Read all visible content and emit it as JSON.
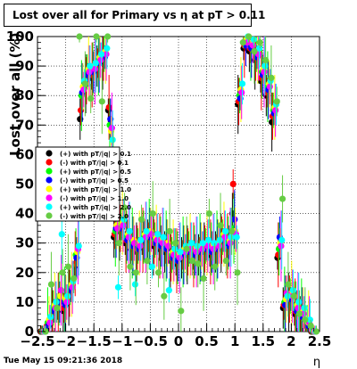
{
  "chart_data": {
    "type": "scatter",
    "title": "Lost over all for Primary vs   η at pT > 0.11",
    "xlabel": "η",
    "ylabel": "Lost over all (%)",
    "xlim": [
      -2.5,
      2.5
    ],
    "ylim": [
      0,
      100
    ],
    "x_ticks": [
      -2.5,
      -2,
      -1.5,
      -1,
      -0.5,
      0,
      0.5,
      1,
      1.5,
      2,
      2.5
    ],
    "x_tick_labels": [
      "−2.5",
      "−2",
      "−1.5",
      "−1",
      "−0.5",
      "0",
      "0.5",
      "1",
      "1.5",
      "2",
      "2.5"
    ],
    "y_ticks": [
      0,
      10,
      20,
      30,
      40,
      50,
      60,
      70,
      80,
      90,
      100
    ],
    "y_tick_labels": [
      "0",
      "10",
      "20",
      "30",
      "40",
      "50",
      "60",
      "70",
      "80",
      "90",
      "100"
    ],
    "grid": true,
    "legend_position": "left",
    "series": [
      {
        "name": "(+) with pT/|q| > 0.1",
        "color": "#000000",
        "marker": "circle",
        "x": [
          -2.4,
          -2.3,
          -2.2,
          -2.1,
          -2.0,
          -1.9,
          -1.8,
          -1.7,
          -1.6,
          -1.5,
          -1.4,
          -1.3,
          -1.2,
          -1.1,
          -1.0,
          -0.9,
          -0.8,
          -0.7,
          -0.6,
          -0.5,
          -0.4,
          -0.3,
          -0.2,
          -0.1,
          0.0,
          0.1,
          0.2,
          0.3,
          0.4,
          0.5,
          0.6,
          0.7,
          0.8,
          0.9,
          1.0,
          1.1,
          1.2,
          1.3,
          1.4,
          1.5,
          1.6,
          1.7,
          1.8,
          1.9,
          2.0,
          2.1,
          2.2,
          2.3,
          2.4
        ],
        "y": [
          0,
          1,
          5,
          8,
          7,
          12,
          22,
          72,
          84,
          86,
          90,
          92,
          75,
          32,
          34,
          30,
          28,
          27,
          30,
          31,
          29,
          28,
          27,
          24,
          23,
          25,
          26,
          25,
          26,
          27,
          26,
          27,
          30,
          28,
          40,
          77,
          96,
          95,
          92,
          85,
          80,
          71,
          25,
          8,
          10,
          6,
          5,
          2,
          0
        ]
      },
      {
        "name": "(-) with pT/|q| > 0.1",
        "color": "#ff0000",
        "marker": "circle",
        "x": [
          -2.4,
          -2.3,
          -2.2,
          -2.1,
          -2.0,
          -1.9,
          -1.8,
          -1.7,
          -1.6,
          -1.5,
          -1.4,
          -1.3,
          -1.2,
          -1.1,
          -1.0,
          -0.9,
          -0.8,
          -0.7,
          -0.6,
          -0.5,
          -0.4,
          -0.3,
          -0.2,
          -0.1,
          0.0,
          0.1,
          0.2,
          0.3,
          0.4,
          0.5,
          0.6,
          0.7,
          0.8,
          0.9,
          1.0,
          1.1,
          1.2,
          1.3,
          1.4,
          1.5,
          1.6,
          1.7,
          1.8,
          1.9,
          2.0,
          2.1,
          2.2,
          2.3,
          2.4
        ],
        "y": [
          0,
          2,
          6,
          9,
          8,
          13,
          23,
          75,
          85,
          87,
          91,
          93,
          76,
          33,
          35,
          31,
          29,
          28,
          31,
          32,
          30,
          29,
          28,
          25,
          24,
          26,
          27,
          26,
          27,
          28,
          27,
          28,
          31,
          29,
          50,
          78,
          97,
          96,
          93,
          86,
          81,
          73,
          26,
          9,
          11,
          7,
          5,
          2,
          0
        ]
      },
      {
        "name": "(+) with pT/|q| > 0.5",
        "color": "#00ff00",
        "marker": "circle",
        "x": [
          -2.4,
          -2.3,
          -2.2,
          -2.1,
          -2.0,
          -1.9,
          -1.8,
          -1.7,
          -1.6,
          -1.5,
          -1.4,
          -1.3,
          -1.2,
          -1.1,
          -1.0,
          -0.9,
          -0.8,
          -0.7,
          -0.6,
          -0.5,
          -0.4,
          -0.3,
          -0.2,
          -0.1,
          0.0,
          0.1,
          0.2,
          0.3,
          0.4,
          0.5,
          0.6,
          0.7,
          0.8,
          0.9,
          1.0,
          1.1,
          1.2,
          1.3,
          1.4,
          1.5,
          1.6,
          1.7,
          1.8,
          1.9,
          2.0,
          2.1,
          2.2,
          2.3,
          2.4
        ],
        "y": [
          0,
          3,
          8,
          11,
          10,
          15,
          26,
          80,
          88,
          89,
          92,
          94,
          70,
          34,
          36,
          32,
          30,
          29,
          32,
          33,
          31,
          30,
          29,
          26,
          25,
          27,
          28,
          27,
          28,
          29,
          28,
          29,
          32,
          30,
          35,
          80,
          98,
          97,
          94,
          88,
          83,
          75,
          28,
          10,
          12,
          8,
          6,
          3,
          0
        ]
      },
      {
        "name": "(-) with pT/|q| > 0.5",
        "color": "#0000ff",
        "marker": "circle",
        "x": [
          -2.4,
          -2.3,
          -2.2,
          -2.1,
          -2.0,
          -1.9,
          -1.8,
          -1.7,
          -1.6,
          -1.5,
          -1.4,
          -1.3,
          -1.2,
          -1.1,
          -1.0,
          -0.9,
          -0.8,
          -0.7,
          -0.6,
          -0.5,
          -0.4,
          -0.3,
          -0.2,
          -0.1,
          0.0,
          0.1,
          0.2,
          0.3,
          0.4,
          0.5,
          0.6,
          0.7,
          0.8,
          0.9,
          1.0,
          1.1,
          1.2,
          1.3,
          1.4,
          1.5,
          1.6,
          1.7,
          1.8,
          1.9,
          2.0,
          2.1,
          2.2,
          2.3,
          2.4
        ],
        "y": [
          0,
          2,
          7,
          10,
          9,
          14,
          25,
          81,
          87,
          88,
          91,
          93,
          72,
          35,
          35,
          31,
          29,
          28,
          31,
          32,
          30,
          29,
          28,
          25,
          24,
          26,
          27,
          26,
          27,
          28,
          27,
          28,
          31,
          29,
          38,
          79,
          97,
          96,
          93,
          87,
          82,
          74,
          32,
          9,
          11,
          7,
          5,
          2,
          0
        ]
      },
      {
        "name": "(+) with pT/|q| > 1.0",
        "color": "#ffff00",
        "marker": "circle",
        "x": [
          -2.4,
          -2.3,
          -2.2,
          -2.1,
          -2.0,
          -1.9,
          -1.8,
          -1.7,
          -1.6,
          -1.5,
          -1.4,
          -1.3,
          -1.2,
          -1.1,
          -1.0,
          -0.9,
          -0.8,
          -0.7,
          -0.6,
          -0.5,
          -0.4,
          -0.3,
          -0.2,
          -0.1,
          0.0,
          0.1,
          0.2,
          0.3,
          0.4,
          0.5,
          0.6,
          0.7,
          0.8,
          0.9,
          1.0,
          1.1,
          1.2,
          1.3,
          1.4,
          1.5,
          1.6,
          1.7,
          1.8,
          1.9,
          2.0,
          2.1,
          2.2,
          2.3,
          2.4
        ],
        "y": [
          0,
          4,
          9,
          12,
          11,
          16,
          27,
          83,
          89,
          90,
          93,
          95,
          68,
          36,
          37,
          33,
          31,
          30,
          33,
          34,
          32,
          31,
          30,
          27,
          26,
          28,
          29,
          28,
          29,
          30,
          29,
          30,
          33,
          31,
          34,
          82,
          99,
          98,
          95,
          89,
          84,
          76,
          30,
          11,
          13,
          9,
          7,
          3,
          0
        ]
      },
      {
        "name": "(-) with pT/|q| > 1.0",
        "color": "#ff00ff",
        "marker": "circle",
        "x": [
          -2.4,
          -2.3,
          -2.2,
          -2.1,
          -2.0,
          -1.9,
          -1.8,
          -1.7,
          -1.6,
          -1.5,
          -1.4,
          -1.3,
          -1.2,
          -1.1,
          -1.0,
          -0.9,
          -0.8,
          -0.7,
          -0.6,
          -0.5,
          -0.4,
          -0.3,
          -0.2,
          -0.1,
          0.0,
          0.1,
          0.2,
          0.3,
          0.4,
          0.5,
          0.6,
          0.7,
          0.8,
          0.9,
          1.0,
          1.1,
          1.2,
          1.3,
          1.4,
          1.5,
          1.6,
          1.7,
          1.8,
          1.9,
          2.0,
          2.1,
          2.2,
          2.3,
          2.4
        ],
        "y": [
          0,
          3,
          8,
          14,
          10,
          15,
          28,
          82,
          88,
          89,
          92,
          94,
          69,
          35,
          36,
          32,
          30,
          29,
          32,
          33,
          31,
          30,
          29,
          26,
          25,
          27,
          28,
          27,
          28,
          29,
          28,
          29,
          32,
          30,
          33,
          81,
          98,
          97,
          94,
          88,
          83,
          75,
          29,
          13,
          12,
          8,
          6,
          3,
          0
        ]
      },
      {
        "name": "(+) with pT/|q| > 2.0",
        "color": "#00ffff",
        "marker": "circle",
        "x": [
          -2.4,
          -2.3,
          -2.2,
          -2.1,
          -2.0,
          -1.9,
          -1.8,
          -1.7,
          -1.6,
          -1.5,
          -1.4,
          -1.3,
          -1.2,
          -1.1,
          -1.0,
          -0.9,
          -0.8,
          -0.7,
          -0.6,
          -0.5,
          -0.4,
          -0.3,
          -0.2,
          -0.1,
          0.0,
          0.1,
          0.2,
          0.3,
          0.4,
          0.5,
          0.6,
          0.7,
          0.8,
          0.9,
          1.0,
          1.1,
          1.2,
          1.3,
          1.4,
          1.5,
          1.6,
          1.7,
          1.8,
          1.9,
          2.0,
          2.1,
          2.2,
          2.3,
          2.4
        ],
        "y": [
          0,
          5,
          10,
          33,
          12,
          17,
          29,
          85,
          90,
          91,
          94,
          96,
          65,
          15,
          38,
          34,
          16,
          31,
          34,
          22,
          33,
          32,
          14,
          28,
          27,
          29,
          30,
          29,
          30,
          31,
          30,
          31,
          34,
          32,
          32,
          84,
          100,
          99,
          96,
          90,
          85,
          77,
          31,
          12,
          14,
          10,
          8,
          4,
          0
        ]
      },
      {
        "name": "(-) with pT/|q| > 2.0",
        "color": "#66cc44",
        "marker": "circle",
        "x": [
          -2.4,
          -2.3,
          -2.2,
          -2.1,
          -2.0,
          -1.9,
          -1.8,
          -1.7,
          -1.6,
          -1.5,
          -1.4,
          -1.3,
          -1.2,
          -1.1,
          -1.0,
          -0.9,
          -0.8,
          -0.7,
          -0.6,
          -0.5,
          -0.4,
          -0.3,
          -0.2,
          -0.1,
          0.0,
          0.1,
          0.2,
          0.3,
          0.4,
          0.5,
          0.6,
          0.7,
          0.8,
          0.9,
          1.0,
          1.1,
          1.2,
          1.3,
          1.4,
          1.5,
          1.6,
          1.7,
          1.8,
          1.9,
          2.0,
          2.1,
          2.2,
          2.3,
          2.4
        ],
        "y": [
          0,
          16,
          8,
          20,
          22,
          18,
          100,
          84,
          79,
          100,
          78,
          100,
          60,
          30,
          42,
          22,
          20,
          38,
          24,
          40,
          20,
          12,
          34,
          30,
          7,
          28,
          24,
          23,
          18,
          40,
          22,
          36,
          24,
          34,
          20,
          98,
          100,
          95,
          98,
          92,
          86,
          78,
          45,
          16,
          12,
          6,
          4,
          2,
          0
        ]
      }
    ]
  },
  "footer": {
    "timestamp": "Tue May 15 09:21:36 2018"
  }
}
